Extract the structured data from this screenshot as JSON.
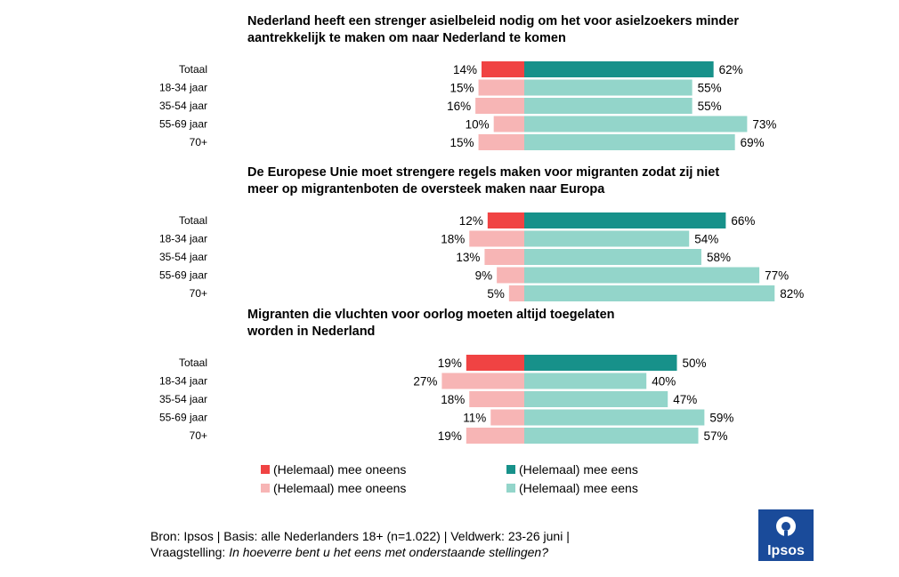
{
  "chart_data": {
    "type": "bar",
    "subtype": "diverging-horizontal-bar",
    "categories": [
      "Totaal",
      "18-34 jaar",
      "35-54 jaar",
      "55-69 jaar",
      "70+"
    ],
    "panels": [
      {
        "title_lines": [
          "Nederland heeft een strenger asielbeleid nodig om het voor asielzoekers minder",
          "aantrekkelijk te maken om naar Nederland te komen"
        ],
        "series": [
          {
            "name": "(Helemaal) mee oneens",
            "values": [
              14,
              15,
              16,
              10,
              15
            ],
            "labels": [
              "14%",
              "15%",
              "16%",
              "10%",
              "15%"
            ]
          },
          {
            "name": "(Helemaal) mee eens",
            "values": [
              62,
              55,
              55,
              73,
              69
            ],
            "labels": [
              "62%",
              "55%",
              "55%",
              "73%",
              "69%"
            ]
          }
        ]
      },
      {
        "title_lines": [
          "De Europese Unie moet strengere regels maken voor migranten zodat zij niet",
          "meer op migrantenboten de oversteek maken naar Europa"
        ],
        "series": [
          {
            "name": "(Helemaal) mee oneens",
            "values": [
              12,
              18,
              13,
              9,
              5
            ],
            "labels": [
              "12%",
              "18%",
              "13%",
              "9%",
              "5%"
            ]
          },
          {
            "name": "(Helemaal) mee eens",
            "values": [
              66,
              54,
              58,
              77,
              82
            ],
            "labels": [
              "66%",
              "54%",
              "58%",
              "77%",
              "82%"
            ]
          }
        ]
      },
      {
        "title_lines": [
          "Migranten die vluchten voor oorlog moeten altijd toegelaten",
          "worden in Nederland"
        ],
        "series": [
          {
            "name": "(Helemaal) mee oneens",
            "values": [
              19,
              27,
              18,
              11,
              19
            ],
            "labels": [
              "19%",
              "27%",
              "18%",
              "11%",
              "19%"
            ]
          },
          {
            "name": "(Helemaal) mee eens",
            "values": [
              50,
              40,
              47,
              59,
              57
            ],
            "labels": [
              "50%",
              "40%",
              "47%",
              "59%",
              "57%"
            ]
          }
        ]
      }
    ],
    "xlim": [
      -30,
      85
    ],
    "colors": {
      "disagree_total": "#f04343",
      "disagree_group": "#f7b5b5",
      "agree_total": "#17918a",
      "agree_group": "#93d5ca"
    }
  },
  "legend": [
    {
      "label": "(Helemaal) mee oneens",
      "color": "#f04343"
    },
    {
      "label": "(Helemaal) mee eens",
      "color": "#17918a"
    },
    {
      "label": "(Helemaal) mee oneens",
      "color": "#f7b5b5"
    },
    {
      "label": "(Helemaal) mee eens",
      "color": "#93d5ca"
    }
  ],
  "source": {
    "line1": "Bron: Ipsos | Basis: alle Nederlanders 18+ (n=1.022) | Veldwerk: 23-26 juni |",
    "line2_prefix": "Vraagstelling: ",
    "line2_question": "In hoeverre bent u het eens met onderstaande stellingen?"
  },
  "logo": {
    "text": "Ipsos",
    "color": "#1a4b9a"
  }
}
